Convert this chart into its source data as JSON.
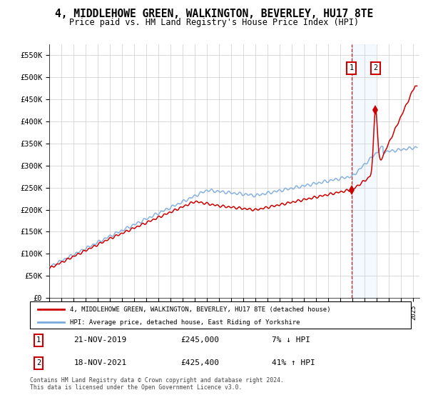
{
  "title": "4, MIDDLEHOWE GREEN, WALKINGTON, BEVERLEY, HU17 8TE",
  "subtitle": "Price paid vs. HM Land Registry's House Price Index (HPI)",
  "ylim": [
    0,
    575000
  ],
  "yticks": [
    0,
    50000,
    100000,
    150000,
    200000,
    250000,
    300000,
    350000,
    400000,
    450000,
    500000,
    550000
  ],
  "ytick_labels": [
    "£0",
    "£50K",
    "£100K",
    "£150K",
    "£200K",
    "£250K",
    "£300K",
    "£350K",
    "£400K",
    "£450K",
    "£500K",
    "£550K"
  ],
  "sale1_date_num": 2019.89,
  "sale1_price": 245000,
  "sale2_date_num": 2021.88,
  "sale2_price": 425400,
  "legend_line1": "4, MIDDLEHOWE GREEN, WALKINGTON, BEVERLEY, HU17 8TE (detached house)",
  "legend_line2": "HPI: Average price, detached house, East Riding of Yorkshire",
  "table_row1": [
    "1",
    "21-NOV-2019",
    "£245,000",
    "7% ↓ HPI"
  ],
  "table_row2": [
    "2",
    "18-NOV-2021",
    "£425,400",
    "41% ↑ HPI"
  ],
  "footnote": "Contains HM Land Registry data © Crown copyright and database right 2024.\nThis data is licensed under the Open Government Licence v3.0.",
  "hpi_color": "#7aaadd",
  "price_color": "#cc0000",
  "shade_color": "#ddeeff",
  "background_color": "#ffffff",
  "grid_color": "#cccccc"
}
